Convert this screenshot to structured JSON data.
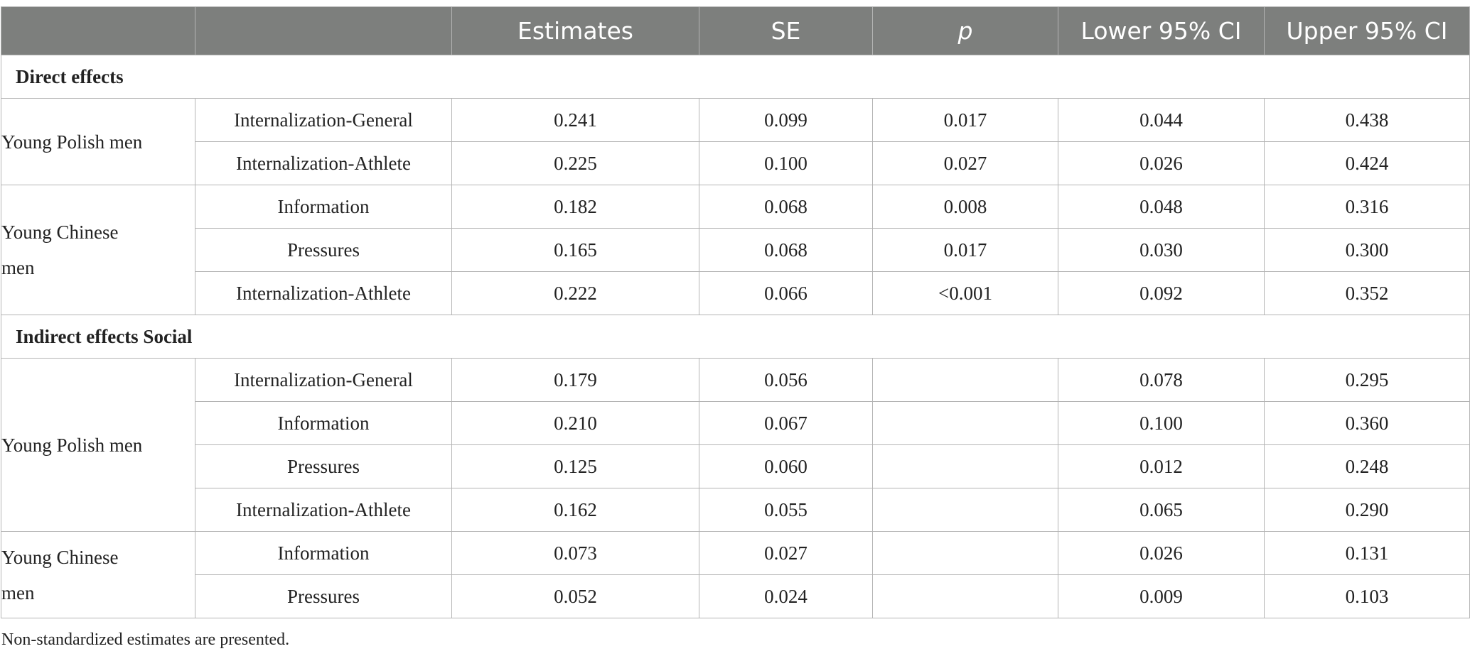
{
  "table": {
    "headers": [
      "",
      "",
      "Estimates",
      "SE",
      "p",
      "Lower 95% CI",
      "Upper 95% CI"
    ],
    "direct_section_title": "Direct effects",
    "indirect_section_title": "Indirect effects Social",
    "direct": [
      {
        "group": "Young Polish men",
        "rows": [
          {
            "label": "Internalization-General",
            "estimate": "0.241",
            "se": "0.099",
            "p": "0.017",
            "lower": "0.044",
            "upper": "0.438"
          },
          {
            "label": "Internalization-Athlete",
            "estimate": "0.225",
            "se": "0.100",
            "p": "0.027",
            "lower": "0.026",
            "upper": "0.424"
          }
        ]
      },
      {
        "group_line1": "Young Chinese",
        "group_line2": "men",
        "rows": [
          {
            "label": "Information",
            "estimate": "0.182",
            "se": "0.068",
            "p": "0.008",
            "lower": "0.048",
            "upper": "0.316"
          },
          {
            "label": "Pressures",
            "estimate": "0.165",
            "se": "0.068",
            "p": "0.017",
            "lower": "0.030",
            "upper": "0.300"
          },
          {
            "label": "Internalization-Athlete",
            "estimate": "0.222",
            "se": "0.066",
            "p": "<0.001",
            "lower": "0.092",
            "upper": "0.352"
          }
        ]
      }
    ],
    "indirect": [
      {
        "group": "Young Polish men",
        "rows": [
          {
            "label": "Internalization-General",
            "estimate": "0.179",
            "se": "0.056",
            "p": "",
            "lower": "0.078",
            "upper": "0.295"
          },
          {
            "label": "Information",
            "estimate": "0.210",
            "se": "0.067",
            "p": "",
            "lower": "0.100",
            "upper": "0.360"
          },
          {
            "label": "Pressures",
            "estimate": "0.125",
            "se": "0.060",
            "p": "",
            "lower": "0.012",
            "upper": "0.248"
          },
          {
            "label": "Internalization-Athlete",
            "estimate": "0.162",
            "se": "0.055",
            "p": "",
            "lower": "0.065",
            "upper": "0.290"
          }
        ]
      },
      {
        "group_line1": "Young Chinese",
        "group_line2": "men",
        "rows": [
          {
            "label": "Information",
            "estimate": "0.073",
            "se": "0.027",
            "p": "",
            "lower": "0.026",
            "upper": "0.131"
          },
          {
            "label": "Pressures",
            "estimate": "0.052",
            "se": "0.024",
            "p": "",
            "lower": "0.009",
            "upper": "0.103"
          }
        ]
      }
    ]
  },
  "footnote": "Non-standardized estimates are presented.",
  "colors": {
    "header_bg": "#7d7f7d",
    "border": "#b4b4b4"
  }
}
